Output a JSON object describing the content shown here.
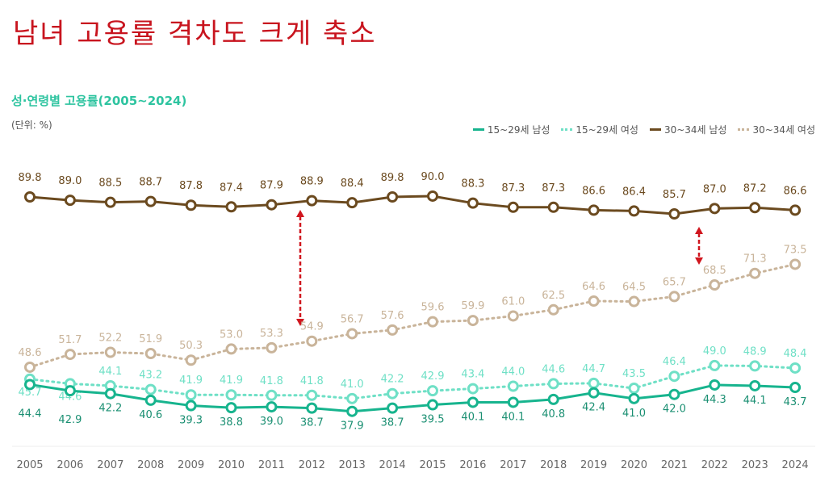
{
  "headline": "남녀 고용률 격차도 크게 축소",
  "chart_data": {
    "type": "line",
    "title": "성·연령별 고용률(2005~2024)",
    "unit_label": "(단위: %)",
    "categories": [
      "2005",
      "2006",
      "2007",
      "2008",
      "2009",
      "2010",
      "2011",
      "2012",
      "2013",
      "2014",
      "2015",
      "2016",
      "2017",
      "2018",
      "2019",
      "2020",
      "2021",
      "2022",
      "2023",
      "2024"
    ],
    "legend_position": "top-right",
    "grid": false,
    "series": [
      {
        "name": "15~29세 남성",
        "color": "#17b48e",
        "style": "solid",
        "values": [
          44.4,
          42.9,
          42.2,
          40.6,
          39.3,
          38.8,
          39.0,
          38.7,
          37.9,
          38.7,
          39.5,
          40.1,
          40.1,
          40.8,
          42.4,
          41.0,
          42.0,
          44.3,
          44.1,
          43.7
        ]
      },
      {
        "name": "15~29세 여성",
        "color": "#6fe0c6",
        "style": "dotted",
        "values": [
          45.7,
          44.6,
          44.1,
          43.2,
          41.9,
          41.9,
          41.8,
          41.8,
          41.0,
          42.2,
          42.9,
          43.4,
          44.0,
          44.6,
          44.7,
          43.5,
          46.4,
          49.0,
          48.9,
          48.4
        ]
      },
      {
        "name": "30~34세 남성",
        "color": "#6b4a1f",
        "style": "solid",
        "values": [
          89.8,
          89.0,
          88.5,
          88.7,
          87.8,
          87.4,
          87.9,
          88.9,
          88.4,
          89.8,
          90.0,
          88.3,
          87.3,
          87.3,
          86.6,
          86.4,
          85.7,
          87.0,
          87.2,
          86.6
        ]
      },
      {
        "name": "30~34세 여성",
        "color": "#c9b49a",
        "style": "dotted",
        "values": [
          48.6,
          51.7,
          52.2,
          51.9,
          50.3,
          53.0,
          53.3,
          54.9,
          56.7,
          57.6,
          59.6,
          59.9,
          61.0,
          62.5,
          64.6,
          64.5,
          65.7,
          68.5,
          71.3,
          73.5
        ]
      }
    ],
    "annotations": [
      {
        "type": "double-arrow",
        "color": "#d0161e",
        "year": "2012"
      },
      {
        "type": "double-arrow",
        "color": "#d0161e",
        "year": "2021~2022"
      }
    ]
  }
}
